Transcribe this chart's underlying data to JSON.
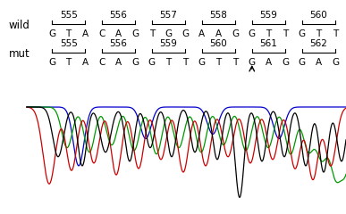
{
  "wild_label": "wild",
  "mut_label": "mut",
  "wild_numbers": [
    "555",
    "556",
    "557",
    "558",
    "559",
    "560"
  ],
  "wild_sequence": "G T A C A G T G G A A G G T T G T T",
  "mut_numbers": [
    "555",
    "556",
    "559",
    "560",
    "561",
    "562"
  ],
  "mut_sequence": "G T A C A G G T T G T T G A G G A G",
  "bg_color": "#ffffff",
  "text_color": "#000000",
  "chromatogram_colors": {
    "black": "#000000",
    "red": "#cc0000",
    "green": "#009900",
    "blue": "#0000cc"
  }
}
